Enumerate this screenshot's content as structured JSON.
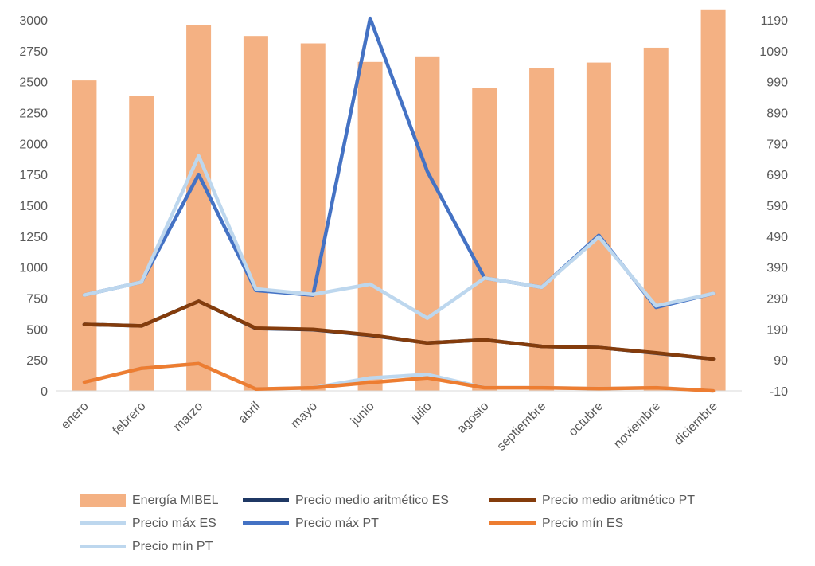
{
  "chart_data": {
    "type": "bar+line",
    "categories": [
      "enero",
      "febrero",
      "marzo",
      "abril",
      "mayo",
      "junio",
      "julio",
      "agosto",
      "septiembre",
      "octubre",
      "noviembre",
      "diciembre"
    ],
    "y_left": {
      "ticks": [
        "0",
        "250",
        "500",
        "750",
        "1000",
        "1250",
        "1500",
        "1750",
        "2000",
        "2250",
        "2500",
        "2750",
        "3000"
      ],
      "range": [
        0,
        3000
      ]
    },
    "y_right": {
      "ticks": [
        "-10",
        "90",
        "190",
        "290",
        "390",
        "490",
        "590",
        "690",
        "790",
        "890",
        "990",
        "1090",
        "1190"
      ],
      "range": [
        -10,
        1190
      ]
    },
    "grid": false,
    "legend_position": "bottom",
    "series": [
      {
        "name": "Energía MIBEL",
        "kind": "bar",
        "axis": "left",
        "color": "#f4b183",
        "values": [
          2510,
          2385,
          2960,
          2870,
          2810,
          2660,
          2705,
          2450,
          2610,
          2655,
          2775,
          3085
        ]
      },
      {
        "name": "Precio medio aritmético ES",
        "kind": "line",
        "axis": "right",
        "color": "#1f3864",
        "values": [
          205,
          200,
          280,
          192,
          188,
          170,
          145,
          155,
          134,
          130,
          112,
          93
        ]
      },
      {
        "name": "Precio medio aritmético PT",
        "kind": "line",
        "axis": "right",
        "color": "#843c0c",
        "values": [
          205,
          200,
          280,
          193,
          189,
          171,
          145,
          155,
          134,
          130,
          113,
          93
        ]
      },
      {
        "name": "Precio máx ES",
        "kind": "line",
        "axis": "right",
        "color": "#bdd7ee",
        "values": [
          300,
          342,
          750,
          320,
          302,
          335,
          225,
          355,
          325,
          488,
          265,
          305
        ]
      },
      {
        "name": "Precio máx PT",
        "kind": "line",
        "axis": "right",
        "color": "#4472c4",
        "values": [
          300,
          342,
          690,
          315,
          300,
          1195,
          700,
          355,
          325,
          493,
          260,
          305
        ]
      },
      {
        "name": "Precio mín ES",
        "kind": "line",
        "axis": "right",
        "color": "#ed7d31",
        "values": [
          18,
          63,
          78,
          -4,
          0,
          17,
          32,
          0,
          0,
          -3,
          0,
          -10
        ]
      },
      {
        "name": "Precio mín PT",
        "kind": "line",
        "axis": "right",
        "color": "#bdd7ee",
        "values": [
          18,
          63,
          78,
          -4,
          0,
          32,
          43,
          0,
          0,
          -3,
          0,
          -10
        ]
      }
    ]
  }
}
